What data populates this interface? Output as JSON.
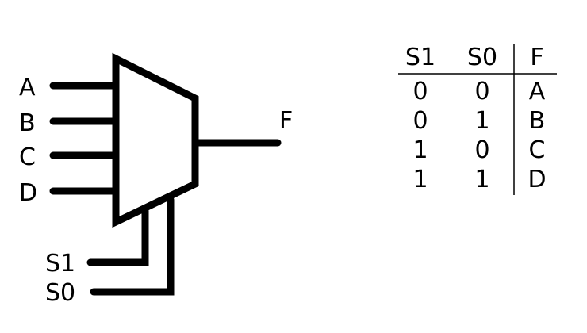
{
  "mux": {
    "inputs": [
      "A",
      "B",
      "C",
      "D"
    ],
    "selects": [
      "S1",
      "S0"
    ],
    "output": "F",
    "colors": {
      "stroke": "#000000",
      "background": "#ffffff"
    }
  },
  "truth_table": {
    "headers": [
      "S1",
      "S0",
      "F"
    ],
    "rows": [
      [
        "0",
        "0",
        "A"
      ],
      [
        "0",
        "1",
        "B"
      ],
      [
        "1",
        "0",
        "C"
      ],
      [
        "1",
        "1",
        "D"
      ]
    ]
  }
}
